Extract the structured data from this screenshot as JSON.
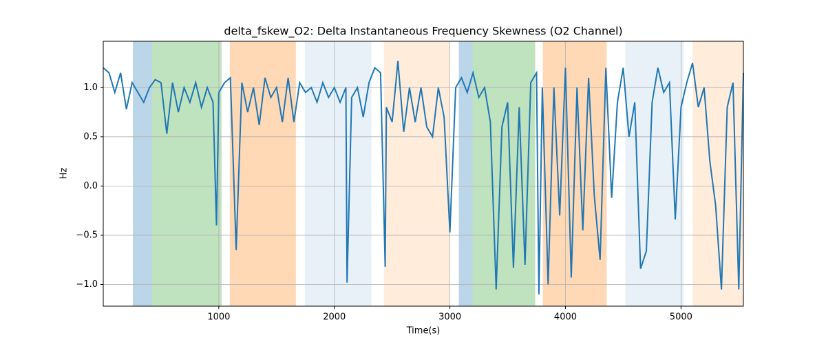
{
  "chart_data": {
    "type": "line",
    "title": "delta_fskew_O2: Delta Instantaneous Frequency Skewness (O2 Channel)",
    "xlabel": "Time(s)",
    "ylabel": "Hz",
    "color": "#1f77b4",
    "x": [
      0,
      50,
      100,
      150,
      200,
      250,
      300,
      350,
      400,
      450,
      500,
      550,
      600,
      650,
      700,
      750,
      800,
      850,
      900,
      950,
      980,
      1000,
      1050,
      1100,
      1150,
      1200,
      1250,
      1300,
      1350,
      1400,
      1450,
      1500,
      1550,
      1600,
      1650,
      1700,
      1750,
      1800,
      1850,
      1900,
      1950,
      2000,
      2050,
      2100,
      2110,
      2150,
      2200,
      2250,
      2300,
      2350,
      2400,
      2440,
      2450,
      2500,
      2550,
      2600,
      2650,
      2700,
      2750,
      2800,
      2850,
      2900,
      2950,
      3000,
      3050,
      3100,
      3150,
      3200,
      3250,
      3300,
      3350,
      3400,
      3450,
      3500,
      3550,
      3600,
      3650,
      3700,
      3750,
      3770,
      3800,
      3850,
      3900,
      3950,
      4000,
      4050,
      4100,
      4150,
      4200,
      4250,
      4300,
      4350,
      4400,
      4450,
      4500,
      4550,
      4600,
      4650,
      4700,
      4750,
      4800,
      4850,
      4900,
      4950,
      5000,
      5050,
      5100,
      5150,
      5200,
      5250,
      5300,
      5350,
      5400,
      5450,
      5500,
      5540
    ],
    "values": [
      1.2,
      1.15,
      0.95,
      1.15,
      0.78,
      1.05,
      0.95,
      0.85,
      1.0,
      1.08,
      1.05,
      0.53,
      1.05,
      0.75,
      1.0,
      0.85,
      1.05,
      0.8,
      1.0,
      0.85,
      -0.4,
      0.95,
      1.05,
      1.1,
      -0.65,
      1.05,
      0.75,
      1.0,
      0.62,
      1.1,
      0.9,
      1.0,
      0.65,
      1.1,
      0.65,
      1.05,
      0.95,
      1.0,
      0.85,
      1.05,
      0.9,
      1.0,
      0.85,
      1.0,
      -0.98,
      0.9,
      1.0,
      0.7,
      1.05,
      1.2,
      1.15,
      -0.82,
      0.8,
      0.65,
      1.27,
      0.55,
      1.0,
      0.65,
      1.0,
      0.6,
      0.5,
      1.0,
      0.7,
      -0.47,
      1.0,
      1.1,
      0.95,
      1.15,
      0.9,
      1.0,
      0.65,
      -1.05,
      0.6,
      0.85,
      -0.83,
      0.8,
      -0.8,
      1.05,
      1.15,
      -1.1,
      1.0,
      -1.0,
      1.0,
      -0.3,
      1.2,
      -0.93,
      1.0,
      -0.45,
      1.1,
      -0.1,
      -0.75,
      1.2,
      -0.12,
      0.85,
      1.2,
      0.5,
      0.85,
      -0.84,
      -0.66,
      0.85,
      1.2,
      0.95,
      1.05,
      -0.34,
      0.8,
      1.05,
      1.25,
      0.8,
      1.0,
      0.25,
      -0.2,
      -1.05,
      0.8,
      1.05,
      -1.05,
      1.15
    ],
    "spans": [
      {
        "start": 256,
        "end": 423,
        "color": "#1f77b4",
        "alpha": 0.3
      },
      {
        "start": 423,
        "end": 1024,
        "color": "#2ca02c",
        "alpha": 0.3
      },
      {
        "start": 1095,
        "end": 1667,
        "color": "#ff7f0e",
        "alpha": 0.3
      },
      {
        "start": 1744,
        "end": 2321,
        "color": "#1f77b4",
        "alpha": 0.1
      },
      {
        "start": 2429,
        "end": 3000,
        "color": "#ff7f0e",
        "alpha": 0.15
      },
      {
        "start": 3077,
        "end": 3196,
        "color": "#1f77b4",
        "alpha": 0.3
      },
      {
        "start": 3196,
        "end": 3738,
        "color": "#2ca02c",
        "alpha": 0.3
      },
      {
        "start": 3804,
        "end": 4357,
        "color": "#ff7f0e",
        "alpha": 0.3
      },
      {
        "start": 4518,
        "end": 5024,
        "color": "#1f77b4",
        "alpha": 0.1
      },
      {
        "start": 5101,
        "end": 5540,
        "color": "#ff7f0e",
        "alpha": 0.15
      }
    ],
    "xlim": [
      0,
      5540
    ],
    "ylim": [
      -1.22,
      1.47
    ],
    "xticks": [
      1000,
      2000,
      3000,
      4000,
      5000
    ],
    "yticks": [
      {
        "value": -1,
        "label": "−1.0"
      },
      {
        "value": -0.5,
        "label": "−0.5"
      },
      {
        "value": 0,
        "label": "0.0"
      },
      0.5,
      {
        "value": 1,
        "label": "1.0"
      }
    ],
    "grid": true
  }
}
